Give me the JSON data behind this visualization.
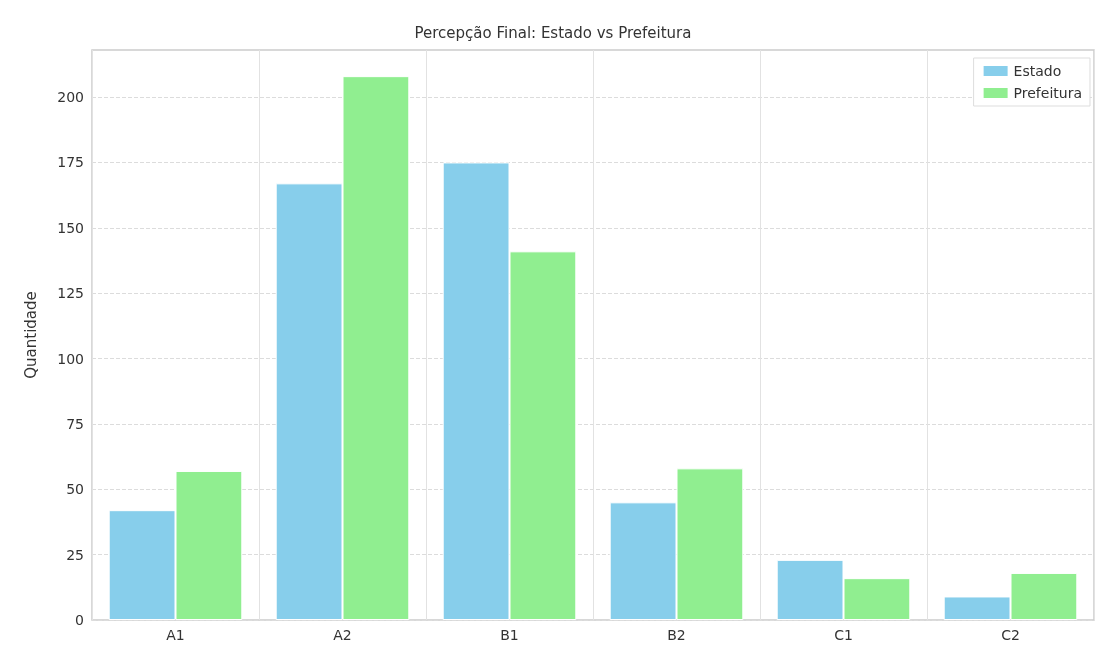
{
  "chart_data": {
    "type": "bar",
    "title": "Percepção Final: Estado vs Prefeitura",
    "ylabel": "Quantidade",
    "categories": [
      "A1",
      "A2",
      "B1",
      "B2",
      "C1",
      "C2"
    ],
    "series": [
      {
        "name": "Estado",
        "color": "#87ceeb",
        "values": [
          42,
          167,
          175,
          45,
          23,
          9
        ]
      },
      {
        "name": "Prefeitura",
        "color": "#90ee90",
        "values": [
          57,
          208,
          141,
          58,
          16,
          18
        ]
      }
    ],
    "ylim": [
      0,
      218
    ],
    "yticks": [
      0,
      25,
      50,
      75,
      100,
      125,
      150,
      175,
      200
    ],
    "grid": true,
    "legend": "top right"
  }
}
